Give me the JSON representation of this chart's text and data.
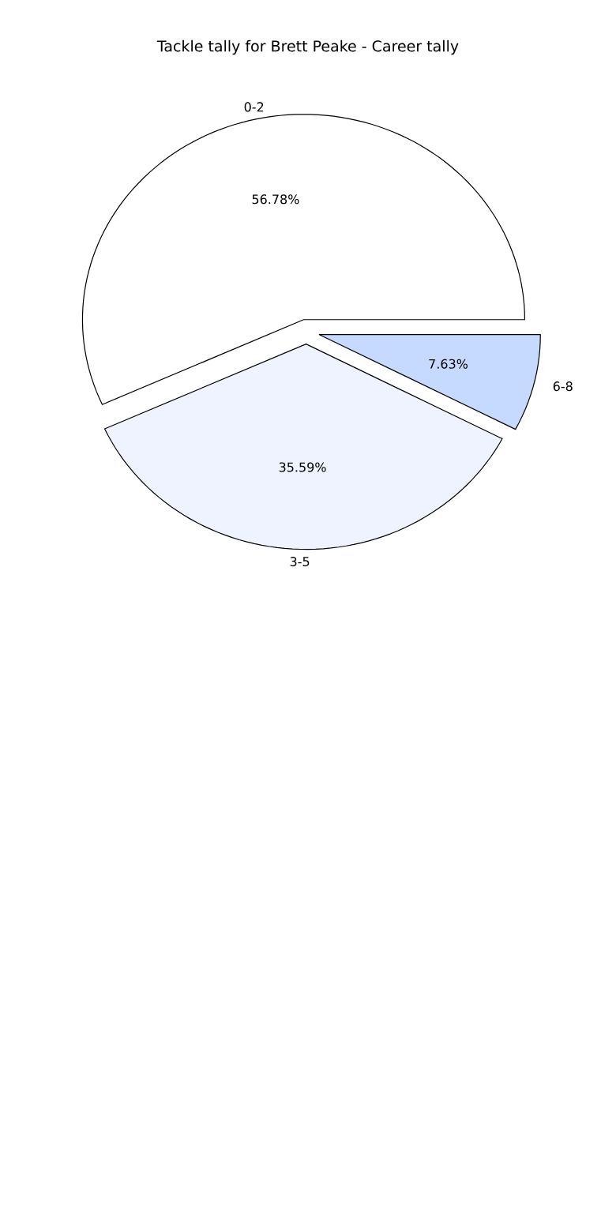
{
  "chart_data": {
    "type": "pie",
    "title": "Tackle tally for Brett Peake - Career tally",
    "categories": [
      "0-2",
      "3-5",
      "6-8"
    ],
    "values": [
      56.78,
      35.59,
      7.63
    ],
    "colors": [
      "#ffffff",
      "#eef3ff",
      "#c6d9ff"
    ],
    "value_labels": [
      "56.78%",
      "35.59%",
      "7.63%"
    ]
  }
}
